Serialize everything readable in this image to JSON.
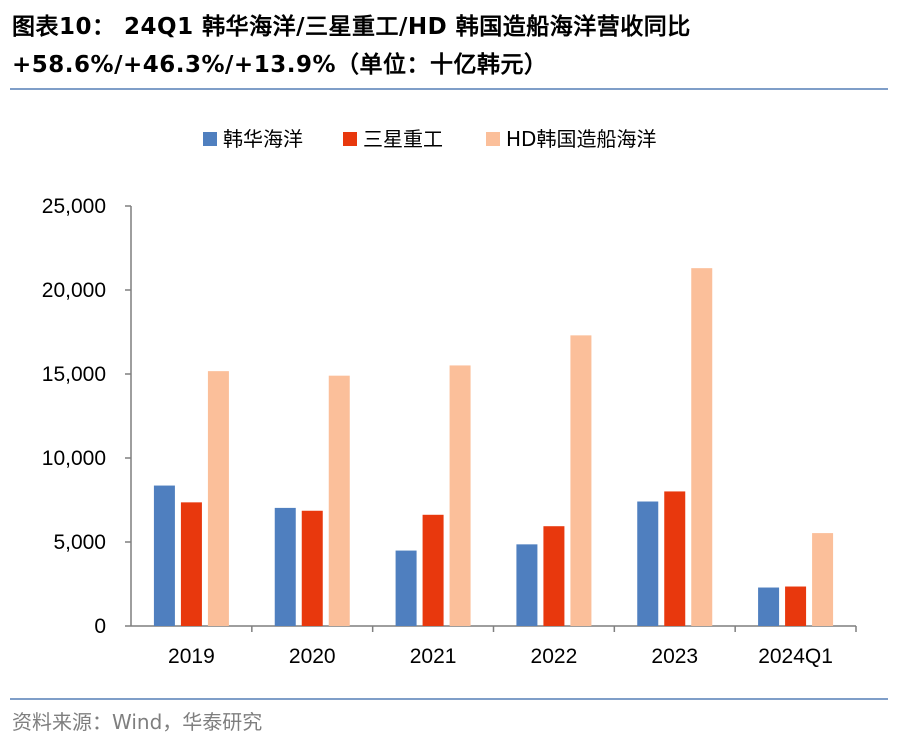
{
  "title": {
    "line1": "图表10：  24Q1  韩华海洋/三星重工/HD  韩国造船海洋营收同比",
    "line2": "+58.6%/+46.3%/+13.9%（单位：十亿韩元）"
  },
  "source": "资料来源：Wind，华泰研究",
  "chart_data": {
    "type": "bar",
    "title": "24Q1 韩华海洋/三星重工/HD 韩国造船海洋营收同比 +58.6%/+46.3%/+13.9%",
    "ylabel": "十亿韩元",
    "xlabel": "",
    "categories": [
      "2019",
      "2020",
      "2021",
      "2022",
      "2023",
      "2024Q1"
    ],
    "ylim": [
      0,
      25000
    ],
    "yticks": [
      0,
      5000,
      10000,
      15000,
      20000,
      25000
    ],
    "ytick_labels": [
      "0",
      "5,000",
      "10,000",
      "15,000",
      "20,000",
      "25,000"
    ],
    "legend_position": "top-center",
    "grid": false,
    "series": [
      {
        "name": "韩华海洋",
        "color": "#4f7fbf",
        "values": [
          8360,
          7030,
          4490,
          4860,
          7410,
          2290
        ]
      },
      {
        "name": "三星重工",
        "color": "#e8380d",
        "values": [
          7360,
          6860,
          6620,
          5940,
          8010,
          2350
        ]
      },
      {
        "name": "HD韩国造船海洋",
        "color": "#fbbf9a",
        "values": [
          15170,
          14900,
          15510,
          17300,
          21300,
          5530
        ]
      }
    ]
  }
}
